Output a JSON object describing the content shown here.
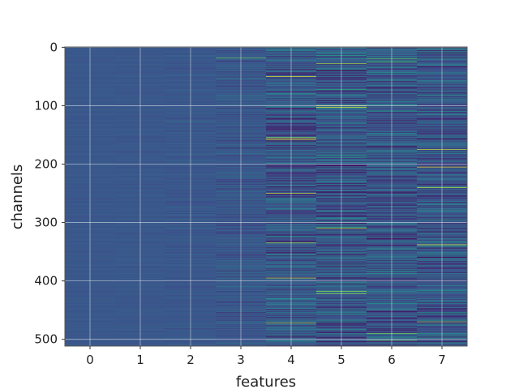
{
  "chart_data": {
    "type": "heatmap",
    "title": "",
    "xlabel": "features",
    "ylabel": "channels",
    "x_categories": [
      0,
      1,
      2,
      3,
      4,
      5,
      6,
      7
    ],
    "y_ticks": [
      0,
      100,
      200,
      300,
      400,
      500
    ],
    "n_rows": 512,
    "n_cols": 8,
    "colormap": "viridis",
    "grid": true,
    "column_spread": [
      0.02,
      0.03,
      0.06,
      0.12,
      0.28,
      0.32,
      0.3,
      0.3
    ],
    "base_level": 0.27,
    "highlights": [
      {
        "col": 3,
        "row": 18,
        "value": 0.75
      },
      {
        "col": 4,
        "row": 50,
        "value": 0.95
      },
      {
        "col": 4,
        "row": 155,
        "value": 0.98
      },
      {
        "col": 4,
        "row": 158,
        "value": 0.95
      },
      {
        "col": 4,
        "row": 250,
        "value": 0.9
      },
      {
        "col": 4,
        "row": 335,
        "value": 0.85
      },
      {
        "col": 4,
        "row": 395,
        "value": 0.9
      },
      {
        "col": 4,
        "row": 472,
        "value": 0.85
      },
      {
        "col": 5,
        "row": 28,
        "value": 0.85
      },
      {
        "col": 5,
        "row": 100,
        "value": 0.95
      },
      {
        "col": 5,
        "row": 103,
        "value": 0.92
      },
      {
        "col": 5,
        "row": 310,
        "value": 0.9
      },
      {
        "col": 5,
        "row": 418,
        "value": 0.85
      },
      {
        "col": 5,
        "row": 422,
        "value": 0.82
      },
      {
        "col": 6,
        "row": 20,
        "value": 0.75
      },
      {
        "col": 6,
        "row": 25,
        "value": 0.7
      },
      {
        "col": 6,
        "row": 490,
        "value": 0.78
      },
      {
        "col": 6,
        "row": 502,
        "value": 0.7
      },
      {
        "col": 7,
        "row": 175,
        "value": 0.9
      },
      {
        "col": 7,
        "row": 205,
        "value": 0.95
      },
      {
        "col": 7,
        "row": 240,
        "value": 0.9
      },
      {
        "col": 7,
        "row": 338,
        "value": 0.95
      },
      {
        "col": 7,
        "row": 470,
        "value": 0.85
      }
    ]
  }
}
